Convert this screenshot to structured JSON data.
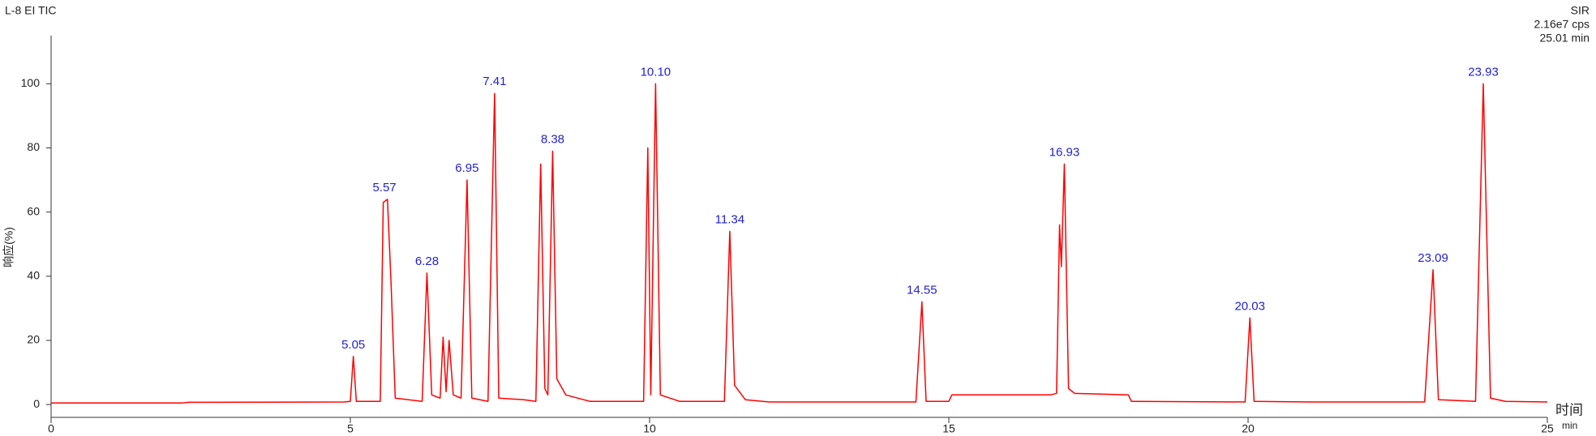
{
  "chart_data": {
    "type": "line",
    "title": "L-8 EI TIC",
    "info": [
      "SIR",
      "2.16e7 cps",
      "25.01 min"
    ],
    "y_label": "响应(%)",
    "x_label": "时间",
    "x_unit": "min",
    "color": "#ff0000",
    "annotation_color": "#1f1fd6",
    "xlim": [
      0,
      25
    ],
    "ylim": [
      -4,
      115
    ],
    "xticks": [
      0,
      5,
      10,
      15,
      20,
      25
    ],
    "yticks": [
      0,
      20,
      40,
      60,
      80,
      100
    ],
    "x": [
      0,
      2.2,
      2.3,
      4.9,
      5.0,
      5.05,
      5.1,
      5.5,
      5.55,
      5.62,
      5.68,
      5.75,
      6.2,
      6.28,
      6.36,
      6.5,
      6.55,
      6.6,
      6.65,
      6.72,
      6.85,
      6.95,
      7.03,
      7.3,
      7.41,
      7.48,
      7.9,
      8.1,
      8.18,
      8.25,
      8.3,
      8.38,
      8.45,
      8.6,
      9.0,
      9.9,
      9.97,
      10.02,
      10.1,
      10.18,
      10.5,
      11.25,
      11.34,
      11.42,
      11.6,
      12,
      14.45,
      14.55,
      14.62,
      15.0,
      15.05,
      16.7,
      16.8,
      16.85,
      16.88,
      16.93,
      17.0,
      17.1,
      18.0,
      18.05,
      19.95,
      20.03,
      20.1,
      21,
      22.95,
      23.09,
      23.18,
      23.8,
      23.93,
      24.05,
      24.3,
      25
    ],
    "values": [
      0.5,
      0.5,
      0.7,
      0.8,
      1,
      15,
      1,
      1,
      63,
      64,
      38,
      2,
      1,
      41,
      3,
      2,
      21,
      4,
      20,
      3,
      2,
      70,
      2,
      1,
      97,
      2,
      1.5,
      1,
      75,
      5,
      3,
      79,
      8,
      3,
      1,
      1,
      80,
      3,
      100,
      3,
      1,
      1,
      54,
      6,
      1.5,
      0.8,
      0.8,
      32,
      1,
      1,
      3,
      3,
      3.5,
      56,
      43,
      75,
      5,
      3.5,
      3,
      1,
      0.8,
      27,
      1,
      0.8,
      0.8,
      42,
      1.5,
      1,
      100,
      2,
      1,
      0.8
    ],
    "annotations": [
      {
        "label": "5.05",
        "x": 5.05,
        "y": 15
      },
      {
        "label": "5.57",
        "x": 5.57,
        "y": 64
      },
      {
        "label": "6.28",
        "x": 6.28,
        "y": 41
      },
      {
        "label": "6.95",
        "x": 6.95,
        "y": 70
      },
      {
        "label": "7.41",
        "x": 7.41,
        "y": 97
      },
      {
        "label": "8.38",
        "x": 8.38,
        "y": 79
      },
      {
        "label": "10.10",
        "x": 10.1,
        "y": 100
      },
      {
        "label": "11.34",
        "x": 11.34,
        "y": 54
      },
      {
        "label": "14.55",
        "x": 14.55,
        "y": 32
      },
      {
        "label": "16.93",
        "x": 16.93,
        "y": 75
      },
      {
        "label": "20.03",
        "x": 20.03,
        "y": 27
      },
      {
        "label": "23.09",
        "x": 23.09,
        "y": 42
      },
      {
        "label": "23.93",
        "x": 23.93,
        "y": 100
      }
    ]
  }
}
